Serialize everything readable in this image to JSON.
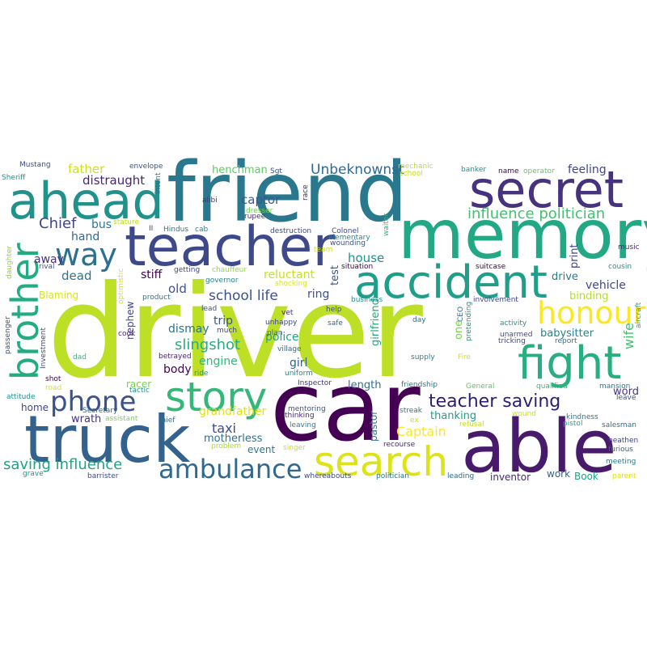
{
  "words": [
    {
      "text": "driver",
      "color": "#bddf26"
    },
    {
      "text": "car",
      "color": "#440154"
    },
    {
      "text": "friend",
      "color": "#2a788e"
    },
    {
      "text": "memory",
      "color": "#22a884"
    },
    {
      "text": "able",
      "color": "#481a6c"
    },
    {
      "text": "truck",
      "color": "#33638d"
    },
    {
      "text": "teacher",
      "color": "#3e4989"
    },
    {
      "text": "secret",
      "color": "#46327e"
    },
    {
      "text": "ahead",
      "color": "#21918c"
    },
    {
      "text": "accident",
      "color": "#1f9e89"
    },
    {
      "text": "fight",
      "color": "#29af7f"
    },
    {
      "text": "search",
      "color": "#dde318"
    },
    {
      "text": "story",
      "color": "#35b779"
    },
    {
      "text": "brother",
      "color": "#25ab82"
    },
    {
      "text": "honour",
      "color": "#fde725"
    },
    {
      "text": "ambulance",
      "color": "#31688e"
    },
    {
      "text": "phone",
      "color": "#3b528b"
    },
    {
      "text": "way",
      "color": "#2c728e"
    },
    {
      "text": "teacher saving",
      "color": "#2d1e73"
    },
    {
      "text": "influence politician",
      "color": "#44bf70"
    },
    {
      "text": "saving influence",
      "color": "#20a386"
    },
    {
      "text": "Unbeknownst",
      "color": "#31688e"
    },
    {
      "text": "slingshot",
      "color": "#26ad81"
    },
    {
      "text": "school life",
      "color": "#3b528b"
    },
    {
      "text": "Chief",
      "color": "#404688"
    },
    {
      "text": "captor",
      "color": "#38598c"
    },
    {
      "text": "distraught",
      "color": "#482475"
    },
    {
      "text": "father",
      "color": "#d0e11c"
    },
    {
      "text": "taxi",
      "color": "#3e4989"
    },
    {
      "text": "Captain",
      "color": "#fde725"
    },
    {
      "text": "grandfather",
      "color": "#dde318"
    },
    {
      "text": "feeling",
      "color": "#404688"
    },
    {
      "text": "henchman",
      "color": "#5ec962"
    },
    {
      "text": "house",
      "color": "#21918c"
    },
    {
      "text": "dead",
      "color": "#2c728e"
    },
    {
      "text": "old",
      "color": "#3b528b"
    },
    {
      "text": "away",
      "color": "#46327e"
    },
    {
      "text": "hand",
      "color": "#31688e"
    },
    {
      "text": "bus",
      "color": "#2a788e"
    },
    {
      "text": "stiff",
      "color": "#440154"
    },
    {
      "text": "trip",
      "color": "#3b528b"
    },
    {
      "text": "dismay",
      "color": "#2c728e"
    },
    {
      "text": "engine",
      "color": "#35b779"
    },
    {
      "text": "body",
      "color": "#440154"
    },
    {
      "text": "police",
      "color": "#20a386"
    },
    {
      "text": "girl",
      "color": "#33638d"
    },
    {
      "text": "ring",
      "color": "#3b528b"
    },
    {
      "text": "reluctant",
      "color": "#cae11f"
    },
    {
      "text": "vehicle",
      "color": "#3e4989"
    },
    {
      "text": "binding",
      "color": "#b5de2b"
    },
    {
      "text": "babysitter",
      "color": "#25848e"
    },
    {
      "text": "drive",
      "color": "#2a788e"
    },
    {
      "text": "print",
      "color": "#404688"
    },
    {
      "text": "word",
      "color": "#46327e"
    },
    {
      "text": "wife",
      "color": "#44bf70"
    },
    {
      "text": "length",
      "color": "#2c728e"
    },
    {
      "text": "thanking",
      "color": "#1f9e89"
    },
    {
      "text": "motherless",
      "color": "#2c728e"
    },
    {
      "text": "wrath",
      "color": "#46327e"
    },
    {
      "text": "home",
      "color": "#404688"
    },
    {
      "text": "nephew",
      "color": "#414487"
    },
    {
      "text": "racer",
      "color": "#7ad151"
    },
    {
      "text": "Blaming",
      "color": "#d8e219"
    },
    {
      "text": "event",
      "color": "#2a788e"
    },
    {
      "text": "work",
      "color": "#33638d"
    },
    {
      "text": "Book",
      "color": "#1f9e89"
    },
    {
      "text": "inventor",
      "color": "#482878"
    },
    {
      "text": "girlfriend",
      "color": "#22a884"
    },
    {
      "text": "test",
      "color": "#3b528b"
    },
    {
      "text": "one",
      "color": "#7ad151"
    },
    {
      "text": "pastor",
      "color": "#2c728e"
    },
    {
      "text": "Mustang",
      "color": "#3e4989"
    },
    {
      "text": "envelope",
      "color": "#3b528b"
    },
    {
      "text": "Sheriff",
      "color": "#21918c"
    },
    {
      "text": "intent",
      "color": "#31688e"
    },
    {
      "text": "Sgt",
      "color": "#3b528b"
    },
    {
      "text": "mechanic",
      "color": "#c2df23"
    },
    {
      "text": "school",
      "color": "#cae11f"
    },
    {
      "text": "banker",
      "color": "#21918c"
    },
    {
      "text": "name",
      "color": "#440154"
    },
    {
      "text": "operator",
      "color": "#5ec962"
    },
    {
      "text": "race",
      "color": "#482878"
    },
    {
      "text": "alibi",
      "color": "#46327e"
    },
    {
      "text": "dresser",
      "color": "#6ccd5a"
    },
    {
      "text": "rupee",
      "color": "#46327e"
    },
    {
      "text": "waiter",
      "color": "#35b779"
    },
    {
      "text": "stature",
      "color": "#c2df23"
    },
    {
      "text": "II",
      "color": "#414487"
    },
    {
      "text": "Hindus",
      "color": "#2a788e"
    },
    {
      "text": "cab",
      "color": "#26828e"
    },
    {
      "text": "destruction",
      "color": "#3e4989"
    },
    {
      "text": "Colonel",
      "color": "#3e4989"
    },
    {
      "text": "elementary",
      "color": "#24868e"
    },
    {
      "text": "wounding",
      "color": "#3b528b"
    },
    {
      "text": "team",
      "color": "#d0e11c"
    },
    {
      "text": "music",
      "color": "#482878"
    },
    {
      "text": "cousin",
      "color": "#21918c"
    },
    {
      "text": "daughter",
      "color": "#8fd744"
    },
    {
      "text": "rival",
      "color": "#3b528b"
    },
    {
      "text": "getting",
      "color": "#3e4989"
    },
    {
      "text": "chauffeur",
      "color": "#93d741"
    },
    {
      "text": "governor",
      "color": "#26828e"
    },
    {
      "text": "shocking",
      "color": "#dde318"
    },
    {
      "text": "situation",
      "color": "#440154"
    },
    {
      "text": "suitcase",
      "color": "#440154"
    },
    {
      "text": "optimistic",
      "color": "#d8e219"
    },
    {
      "text": "product",
      "color": "#2a788e"
    },
    {
      "text": "lead",
      "color": "#3b528b"
    },
    {
      "text": "business",
      "color": "#21918c"
    },
    {
      "text": "involvement",
      "color": "#3e4989"
    },
    {
      "text": "aircraft",
      "color": "#22a884"
    },
    {
      "text": "vet",
      "color": "#482878"
    },
    {
      "text": "help",
      "color": "#3b528b"
    },
    {
      "text": "unhappy",
      "color": "#404688"
    },
    {
      "text": "safe",
      "color": "#31688e"
    },
    {
      "text": "much",
      "color": "#404688"
    },
    {
      "text": "day",
      "color": "#2c728e"
    },
    {
      "text": "CEO",
      "color": "#31688e"
    },
    {
      "text": "pretending",
      "color": "#21918c"
    },
    {
      "text": "activity",
      "color": "#21918c"
    },
    {
      "text": "Investment",
      "color": "#3e4989"
    },
    {
      "text": "cook",
      "color": "#482475"
    },
    {
      "text": "plan",
      "color": "#31688e"
    },
    {
      "text": "village",
      "color": "#31688e"
    },
    {
      "text": "unarmed",
      "color": "#404688"
    },
    {
      "text": "tricking",
      "color": "#3e4989"
    },
    {
      "text": "report",
      "color": "#2c728e"
    },
    {
      "text": "supply",
      "color": "#26828e"
    },
    {
      "text": "passenger",
      "color": "#3b528b"
    },
    {
      "text": "dad",
      "color": "#35b779"
    },
    {
      "text": "betrayed",
      "color": "#482475"
    },
    {
      "text": "ride",
      "color": "#1f9e89"
    },
    {
      "text": "uniform",
      "color": "#26828e"
    },
    {
      "text": "Fire",
      "color": "#d8e219"
    },
    {
      "text": "shot",
      "color": "#440154"
    },
    {
      "text": "tactic",
      "color": "#21918c"
    },
    {
      "text": "road",
      "color": "#d8e219"
    },
    {
      "text": "Inspector",
      "color": "#46327e"
    },
    {
      "text": "friendship",
      "color": "#2a788e"
    },
    {
      "text": "General",
      "color": "#5ec962"
    },
    {
      "text": "qualified",
      "color": "#35b779"
    },
    {
      "text": "mansion",
      "color": "#2c728e"
    },
    {
      "text": "attitude",
      "color": "#21918c"
    },
    {
      "text": "leave",
      "color": "#3b528b"
    },
    {
      "text": "Secretary",
      "color": "#31688e"
    },
    {
      "text": "assistant",
      "color": "#7ad151"
    },
    {
      "text": "thief",
      "color": "#2c728e"
    },
    {
      "text": "mentoring",
      "color": "#3b528b"
    },
    {
      "text": "thinking",
      "color": "#482878"
    },
    {
      "text": "streak",
      "color": "#2a788e"
    },
    {
      "text": "ex",
      "color": "#c2df23"
    },
    {
      "text": "leaving",
      "color": "#26828e"
    },
    {
      "text": "wound",
      "color": "#cae11f"
    },
    {
      "text": "refusal",
      "color": "#cae11f"
    },
    {
      "text": "kindness",
      "color": "#2c728e"
    },
    {
      "text": "pistol",
      "color": "#1f9e89"
    },
    {
      "text": "salesman",
      "color": "#2c728e"
    },
    {
      "text": "heathen",
      "color": "#404688"
    },
    {
      "text": "furious",
      "color": "#31688e"
    },
    {
      "text": "problem",
      "color": "#a8db34"
    },
    {
      "text": "singer",
      "color": "#d0e11c"
    },
    {
      "text": "recourse",
      "color": "#482878"
    },
    {
      "text": "meeting",
      "color": "#2a788e"
    },
    {
      "text": "grave",
      "color": "#21918c"
    },
    {
      "text": "barrister",
      "color": "#3e4989"
    },
    {
      "text": "whereabouts",
      "color": "#3e4989"
    },
    {
      "text": "politician",
      "color": "#2a788e"
    },
    {
      "text": "leading",
      "color": "#31688e"
    },
    {
      "text": "parent",
      "color": "#dde318"
    }
  ]
}
